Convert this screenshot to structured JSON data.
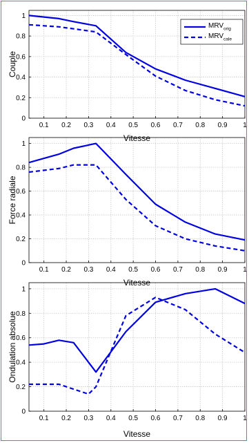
{
  "chart_data": [
    {
      "type": "line",
      "xlabel": "Vitesse",
      "ylabel": "Couple",
      "xlim": [
        0.033,
        1.0
      ],
      "ylim": [
        0,
        1.05
      ],
      "xticks": [
        "0.1",
        "0.2",
        "0.3",
        "0.4",
        "0.5",
        "0.6",
        "0.7",
        "0.8",
        "0.9",
        "1"
      ],
      "yticks": [
        "0",
        "0.2",
        "0.4",
        "0.6",
        "0.8",
        "1"
      ],
      "grid": true,
      "legend": "top-right",
      "series": [
        {
          "name": "MRV",
          "subscript": "orig",
          "style": "solid",
          "x": [
            0.033,
            0.167,
            0.233,
            0.333,
            0.467,
            0.6,
            0.733,
            0.867,
            1.0
          ],
          "y": [
            1.0,
            0.97,
            0.94,
            0.9,
            0.64,
            0.48,
            0.37,
            0.29,
            0.21
          ]
        },
        {
          "name": "MRV",
          "subscript": "cale",
          "style": "dashed",
          "x": [
            0.033,
            0.167,
            0.233,
            0.333,
            0.467,
            0.6,
            0.733,
            0.867,
            1.0
          ],
          "y": [
            0.91,
            0.89,
            0.87,
            0.84,
            0.62,
            0.41,
            0.27,
            0.18,
            0.12
          ]
        }
      ]
    },
    {
      "type": "line",
      "xlabel": "Vitesse",
      "ylabel": "Force radiale",
      "xlim": [
        0.033,
        1.0
      ],
      "ylim": [
        0,
        1.05
      ],
      "xticks": [
        "0.1",
        "0.2",
        "0.3",
        "0.4",
        "0.5",
        "0.6",
        "0.7",
        "0.8",
        "0.9",
        "1"
      ],
      "yticks": [
        "0",
        "0.2",
        "0.4",
        "0.6",
        "0.8",
        "1"
      ],
      "grid": true,
      "series": [
        {
          "style": "solid",
          "x": [
            0.033,
            0.167,
            0.233,
            0.333,
            0.467,
            0.6,
            0.733,
            0.867,
            1.0
          ],
          "y": [
            0.84,
            0.91,
            0.96,
            1.0,
            0.74,
            0.49,
            0.34,
            0.24,
            0.19
          ]
        },
        {
          "style": "dashed",
          "x": [
            0.033,
            0.167,
            0.233,
            0.333,
            0.467,
            0.6,
            0.733,
            0.867,
            1.0
          ],
          "y": [
            0.76,
            0.79,
            0.82,
            0.82,
            0.53,
            0.31,
            0.2,
            0.14,
            0.1
          ]
        }
      ]
    },
    {
      "type": "line",
      "xlabel": "Vitesse",
      "ylabel": "Ondulation absolue",
      "xlim": [
        0.033,
        1.0
      ],
      "ylim": [
        0,
        1.05
      ],
      "xticks": [
        "0.1",
        "0.2",
        "0.3",
        "0.4",
        "0.5",
        "0.6",
        "0.7",
        "0.8",
        "0.9",
        "1"
      ],
      "yticks": [
        "0",
        "0.2",
        "0.4",
        "0.6",
        "0.8",
        "1"
      ],
      "grid": true,
      "series": [
        {
          "style": "solid",
          "x": [
            0.033,
            0.1,
            0.167,
            0.233,
            0.333,
            0.467,
            0.6,
            0.733,
            0.867,
            1.0
          ],
          "y": [
            0.54,
            0.55,
            0.58,
            0.56,
            0.32,
            0.65,
            0.89,
            0.96,
            1.0,
            0.88
          ]
        },
        {
          "style": "dashed",
          "x": [
            0.033,
            0.1,
            0.167,
            0.233,
            0.3,
            0.333,
            0.467,
            0.6,
            0.733,
            0.867,
            1.0
          ],
          "y": [
            0.22,
            0.22,
            0.22,
            0.18,
            0.14,
            0.2,
            0.78,
            0.93,
            0.83,
            0.63,
            0.48
          ]
        }
      ]
    }
  ],
  "colors": {
    "line": "#0000e0",
    "grid": "#c8c8c8",
    "frame": "#2bb24c"
  }
}
